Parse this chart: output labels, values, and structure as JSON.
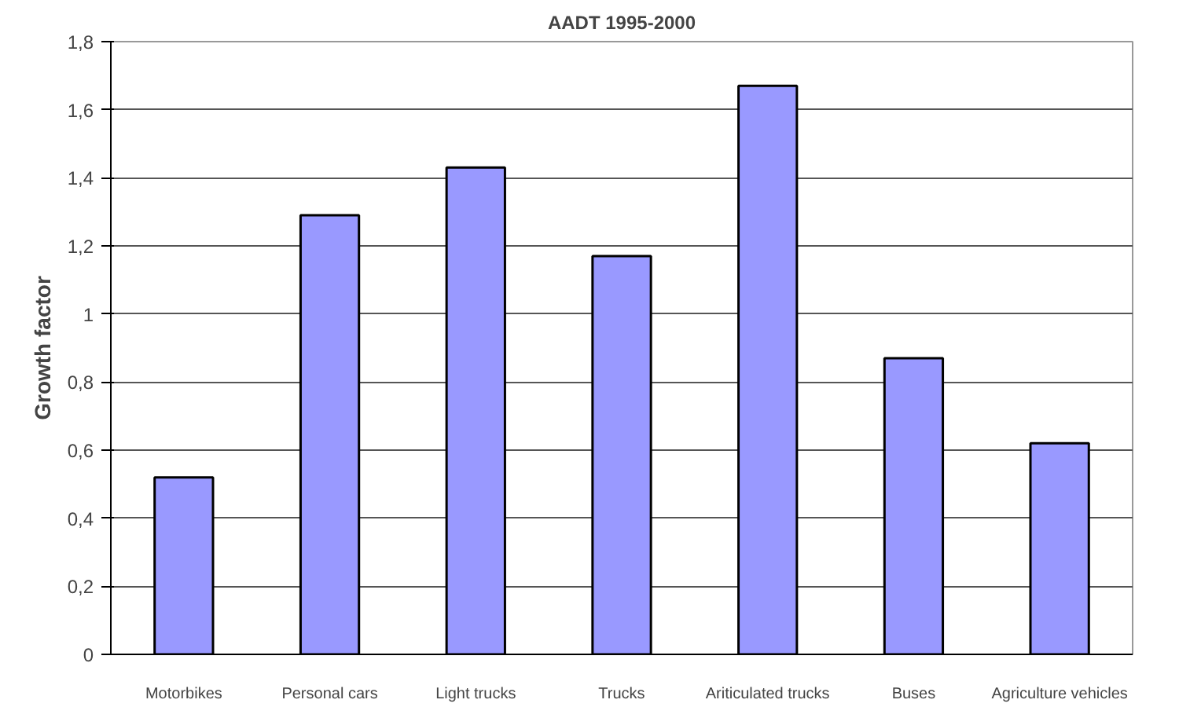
{
  "chart_data": {
    "type": "bar",
    "title": "AADT 1995-2000",
    "ylabel": "Growth factor",
    "categories": [
      "Motorbikes",
      "Personal cars",
      "Light trucks",
      "Trucks",
      "Ariticulated trucks",
      "Buses",
      "Agriculture vehicles"
    ],
    "values": [
      0.52,
      1.29,
      1.43,
      1.17,
      1.67,
      0.87,
      0.62
    ],
    "color": "#9999ff",
    "ylim": [
      0,
      1.8
    ],
    "yticks": [
      0,
      {
        "value": 0.2,
        "label": "0,2"
      },
      {
        "value": 0.4,
        "label": "0,4"
      },
      {
        "value": 0.6,
        "label": "0,6"
      },
      {
        "value": 0.8,
        "label": "0,8"
      },
      1,
      {
        "value": 1.2,
        "label": "1,2"
      },
      {
        "value": 1.4,
        "label": "1,4"
      },
      {
        "value": 1.6,
        "label": "1,6"
      },
      {
        "value": 1.8,
        "label": "1,8"
      }
    ],
    "grid": "y"
  }
}
